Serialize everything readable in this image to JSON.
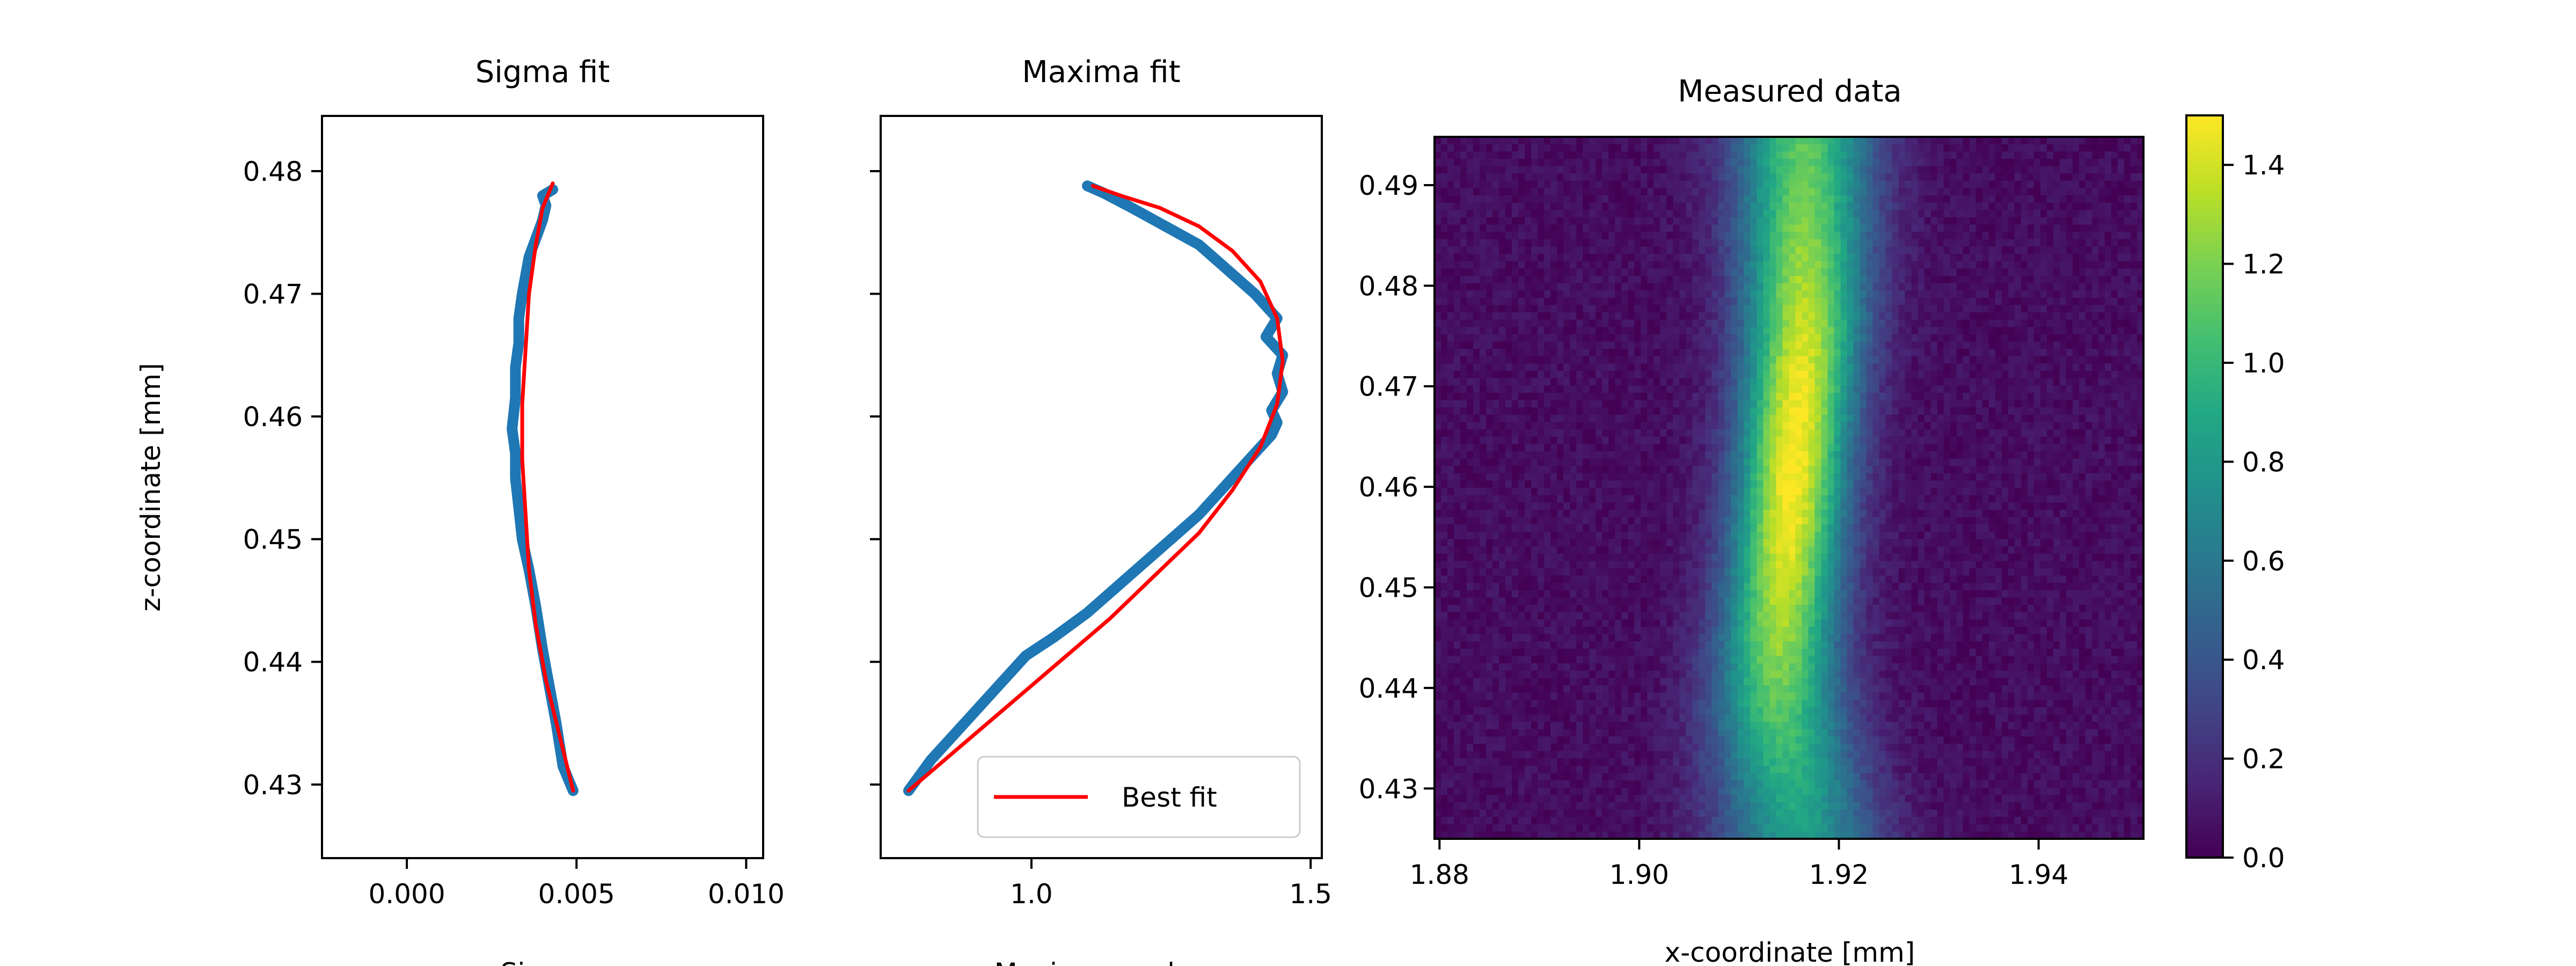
{
  "chart_data": [
    {
      "type": "line",
      "title": "Sigma fit",
      "xlabel": "Sigma",
      "ylabel": "z-coordinate [mm]",
      "xlim": [
        -0.0025,
        0.0105
      ],
      "ylim": [
        0.424,
        0.4845
      ],
      "xticks": [
        0.0,
        0.005,
        0.01
      ],
      "xtick_labels": [
        "0.000",
        "0.005",
        "0.010"
      ],
      "yticks": [
        0.43,
        0.44,
        0.45,
        0.46,
        0.47,
        0.48
      ],
      "ytick_labels": [
        "0.43",
        "0.44",
        "0.45",
        "0.46",
        "0.47",
        "0.48"
      ],
      "series": [
        {
          "kind": "measured",
          "color": "#1f77b4",
          "x": [
            0.0049,
            0.0046,
            0.0044,
            0.0042,
            0.004,
            0.0038,
            0.0036,
            0.0034,
            0.0033,
            0.0032,
            0.0032,
            0.0031,
            0.0032,
            0.0032,
            0.0033,
            0.0033,
            0.0034,
            0.0035,
            0.0036,
            0.0038,
            0.004,
            0.0041,
            0.004,
            0.0043
          ],
          "y": [
            0.4295,
            0.4315,
            0.435,
            0.438,
            0.441,
            0.4445,
            0.4475,
            0.45,
            0.4525,
            0.455,
            0.457,
            0.459,
            0.4615,
            0.464,
            0.466,
            0.468,
            0.47,
            0.4715,
            0.473,
            0.4745,
            0.476,
            0.4772,
            0.478,
            0.4785
          ]
        },
        {
          "kind": "fit",
          "color": "#ff0000",
          "x": [
            0.0049,
            0.0045,
            0.0041,
            0.0038,
            0.0036,
            0.0035,
            0.0034,
            0.0034,
            0.0035,
            0.0036,
            0.0038,
            0.004,
            0.0043
          ],
          "y": [
            0.4295,
            0.434,
            0.4385,
            0.443,
            0.4475,
            0.452,
            0.4565,
            0.461,
            0.4655,
            0.47,
            0.474,
            0.477,
            0.479
          ]
        }
      ]
    },
    {
      "type": "line",
      "title": "Maxima fit",
      "xlabel": "Maximum value",
      "xlim": [
        0.73,
        1.52
      ],
      "ylim": [
        0.424,
        0.4845
      ],
      "xticks": [
        1.0,
        1.5
      ],
      "xtick_labels": [
        "1.0",
        "1.5"
      ],
      "legend": {
        "entries": [
          "Best fit"
        ],
        "position": "lower right"
      },
      "series": [
        {
          "kind": "measured",
          "color": "#1f77b4",
          "x": [
            0.78,
            0.82,
            0.87,
            0.92,
            0.96,
            0.99,
            1.04,
            1.1,
            1.15,
            1.2,
            1.25,
            1.3,
            1.34,
            1.37,
            1.4,
            1.43,
            1.44,
            1.43,
            1.45,
            1.44,
            1.45,
            1.42,
            1.44,
            1.4,
            1.35,
            1.3,
            1.24,
            1.18,
            1.13,
            1.1
          ],
          "y": [
            0.4295,
            0.432,
            0.4345,
            0.437,
            0.439,
            0.4405,
            0.442,
            0.444,
            0.446,
            0.448,
            0.45,
            0.452,
            0.454,
            0.4555,
            0.457,
            0.4585,
            0.4595,
            0.4605,
            0.462,
            0.4635,
            0.465,
            0.4665,
            0.468,
            0.47,
            0.472,
            0.474,
            0.4755,
            0.477,
            0.4782,
            0.4788
          ]
        },
        {
          "kind": "fit",
          "name": "Best fit",
          "color": "#ff0000",
          "x": [
            0.78,
            0.87,
            0.96,
            1.05,
            1.14,
            1.22,
            1.3,
            1.36,
            1.41,
            1.44,
            1.45,
            1.44,
            1.41,
            1.36,
            1.3,
            1.23,
            1.16,
            1.11
          ],
          "y": [
            0.4295,
            0.433,
            0.4365,
            0.44,
            0.4435,
            0.447,
            0.4505,
            0.454,
            0.4575,
            0.461,
            0.4645,
            0.468,
            0.471,
            0.4735,
            0.4755,
            0.477,
            0.478,
            0.4788
          ]
        }
      ]
    },
    {
      "type": "heatmap",
      "title": "Measured data",
      "xlabel": "x-coordinate [mm]",
      "xlim": [
        1.8795,
        1.9505
      ],
      "ylim": [
        0.425,
        0.4948
      ],
      "xticks": [
        1.88,
        1.9,
        1.92,
        1.94
      ],
      "xtick_labels": [
        "1.88",
        "1.90",
        "1.92",
        "1.94"
      ],
      "yticks": [
        0.43,
        0.44,
        0.45,
        0.46,
        0.47,
        0.48,
        0.49
      ],
      "ytick_labels": [
        "0.43",
        "0.44",
        "0.45",
        "0.46",
        "0.47",
        "0.48",
        "0.49"
      ],
      "colormap": "viridis",
      "colorbar": {
        "range": [
          0.0,
          1.5
        ],
        "ticks": [
          0.0,
          0.2,
          0.4,
          0.6,
          0.8,
          1.0,
          1.2,
          1.4
        ],
        "tick_labels": [
          "0.0",
          "0.2",
          "0.4",
          "0.6",
          "0.8",
          "1.0",
          "1.2",
          "1.4"
        ]
      },
      "beam": {
        "center_x": [
          1.916,
          1.915,
          1.914,
          1.914,
          1.9145,
          1.915,
          1.9155,
          1.916,
          1.9165,
          1.9165,
          1.9165,
          1.9165
        ],
        "sigma_x": [
          0.0055,
          0.005,
          0.0046,
          0.0042,
          0.004,
          0.0039,
          0.0039,
          0.004,
          0.0042,
          0.0044,
          0.0046,
          0.0048
        ],
        "peak": [
          0.78,
          0.9,
          1.05,
          1.2,
          1.33,
          1.43,
          1.46,
          1.42,
          1.33,
          1.22,
          1.12,
          1.05
        ],
        "z": [
          0.425,
          0.4313,
          0.4377,
          0.444,
          0.4504,
          0.4567,
          0.4631,
          0.4694,
          0.4758,
          0.4821,
          0.4885,
          0.4948
        ],
        "background": 0.05
      }
    }
  ]
}
